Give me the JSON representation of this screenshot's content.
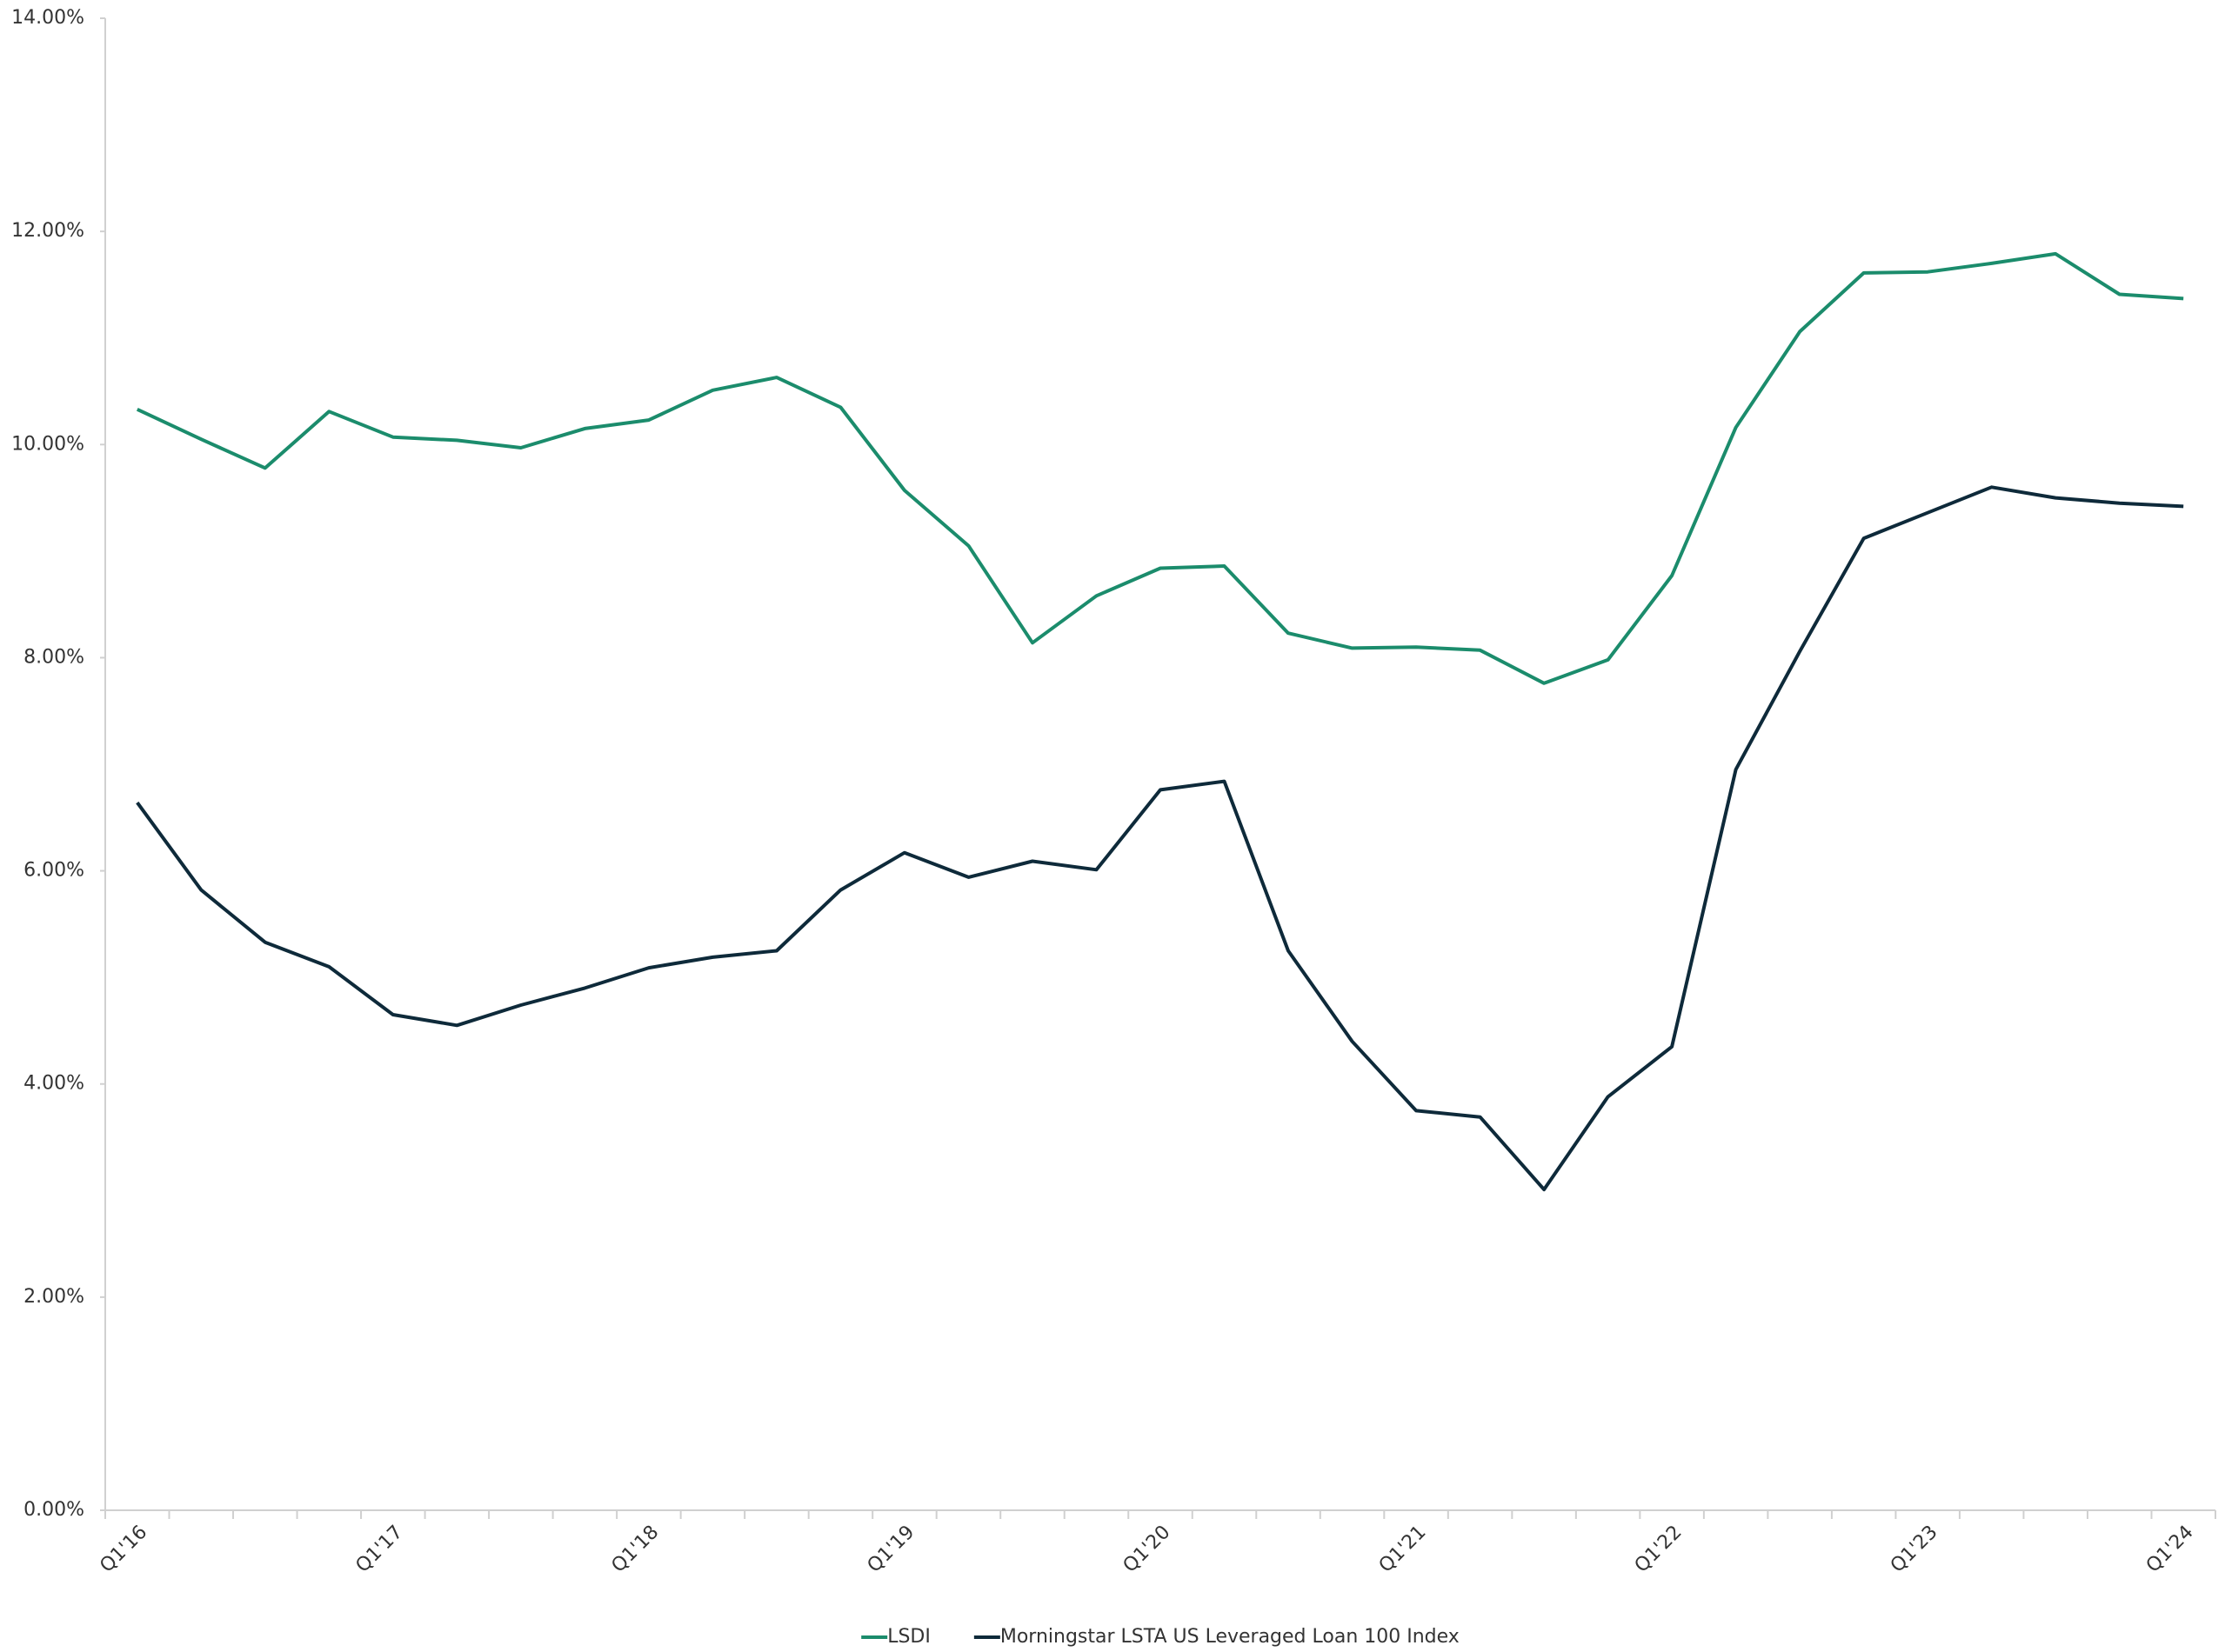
{
  "chart_data": {
    "type": "line",
    "categories": [
      "Q1'16",
      null,
      null,
      null,
      "Q1'17",
      null,
      null,
      null,
      "Q1'18",
      null,
      null,
      null,
      "Q1'19",
      null,
      null,
      null,
      "Q1'20",
      null,
      null,
      null,
      "Q1'21",
      null,
      null,
      null,
      "Q1'22",
      null,
      null,
      null,
      "Q1'23",
      null,
      null,
      null,
      "Q1'24"
    ],
    "series": [
      {
        "name": "LSDI",
        "color": "#1b8c6c",
        "values": [
          10.33,
          10.05,
          9.78,
          10.31,
          10.07,
          10.04,
          9.97,
          10.15,
          10.23,
          10.51,
          10.63,
          10.35,
          9.57,
          9.05,
          8.14,
          8.58,
          8.84,
          8.86,
          8.23,
          8.09,
          8.1,
          8.07,
          7.76,
          7.98,
          8.77,
          10.16,
          11.06,
          11.61,
          11.62,
          11.7,
          11.79,
          11.41,
          11.37
        ]
      },
      {
        "name": "Morningstar LSTA US Leveraged Loan 100 Index",
        "color": "#0e2a3a",
        "values": [
          6.64,
          5.82,
          5.33,
          5.1,
          4.65,
          4.55,
          4.74,
          4.9,
          5.09,
          5.19,
          5.25,
          5.82,
          6.17,
          5.94,
          6.09,
          6.01,
          6.76,
          6.84,
          5.25,
          4.4,
          3.75,
          3.69,
          3.01,
          3.88,
          4.35,
          6.95,
          8.06,
          9.12,
          9.36,
          9.6,
          9.5,
          9.45,
          9.42
        ]
      }
    ],
    "ylim": [
      0,
      14
    ],
    "yticks": [
      {
        "value": 0,
        "label": "0.00%"
      },
      {
        "value": 2,
        "label": "2.00%"
      },
      {
        "value": 4,
        "label": "4.00%"
      },
      {
        "value": 6,
        "label": "6.00%"
      },
      {
        "value": 8,
        "label": "8.00%"
      },
      {
        "value": 10,
        "label": "10.00%"
      },
      {
        "value": 12,
        "label": "12.00%"
      },
      {
        "value": 14,
        "label": "14.00%"
      }
    ],
    "grid": false,
    "legend": "bottom"
  }
}
